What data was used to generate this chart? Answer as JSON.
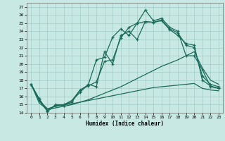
{
  "title": "",
  "xlabel": "Humidex (Indice chaleur)",
  "background_color": "#c8e8e4",
  "grid_color": "#a0ccc8",
  "line_color": "#1a6b5a",
  "xlim": [
    -0.5,
    23.5
  ],
  "ylim": [
    14,
    27.5
  ],
  "xticks": [
    0,
    1,
    2,
    3,
    4,
    5,
    6,
    7,
    8,
    9,
    10,
    11,
    12,
    13,
    14,
    15,
    16,
    17,
    18,
    19,
    20,
    21,
    22,
    23
  ],
  "yticks": [
    14,
    15,
    16,
    17,
    18,
    19,
    20,
    21,
    22,
    23,
    24,
    25,
    26,
    27
  ],
  "line_main": [
    17.5,
    15.7,
    14.2,
    14.9,
    14.9,
    15.5,
    16.5,
    17.5,
    17.2,
    21.5,
    20.0,
    23.5,
    24.0,
    23.0,
    25.2,
    25.1,
    25.3,
    24.2,
    23.5,
    22.5,
    22.3,
    18.0,
    17.3,
    17.0
  ],
  "line_top": [
    17.5,
    15.7,
    14.2,
    14.9,
    14.9,
    15.3,
    16.8,
    17.3,
    17.8,
    20.3,
    20.5,
    23.2,
    24.5,
    25.0,
    26.6,
    25.3,
    25.6,
    24.5,
    24.0,
    21.0,
    21.0,
    19.3,
    17.2,
    17.0
  ],
  "line_mid2": [
    17.5,
    15.5,
    14.2,
    15.0,
    15.0,
    15.5,
    16.8,
    17.4,
    20.5,
    20.8,
    23.3,
    24.3,
    23.5,
    25.0,
    25.2,
    25.1,
    25.4,
    24.3,
    23.8,
    22.3,
    22.0,
    18.5,
    17.5,
    17.2
  ],
  "line_flat1": [
    17.5,
    15.5,
    14.5,
    14.8,
    15.0,
    15.1,
    15.3,
    15.5,
    15.7,
    15.9,
    16.1,
    16.3,
    16.5,
    16.7,
    16.9,
    17.1,
    17.2,
    17.3,
    17.4,
    17.5,
    17.6,
    17.0,
    16.8,
    16.7
  ],
  "line_flat2": [
    17.5,
    15.2,
    14.4,
    14.6,
    14.8,
    15.0,
    15.3,
    15.6,
    16.0,
    16.4,
    16.8,
    17.2,
    17.7,
    18.2,
    18.7,
    19.2,
    19.7,
    20.1,
    20.5,
    21.0,
    21.5,
    19.5,
    18.0,
    17.5
  ]
}
